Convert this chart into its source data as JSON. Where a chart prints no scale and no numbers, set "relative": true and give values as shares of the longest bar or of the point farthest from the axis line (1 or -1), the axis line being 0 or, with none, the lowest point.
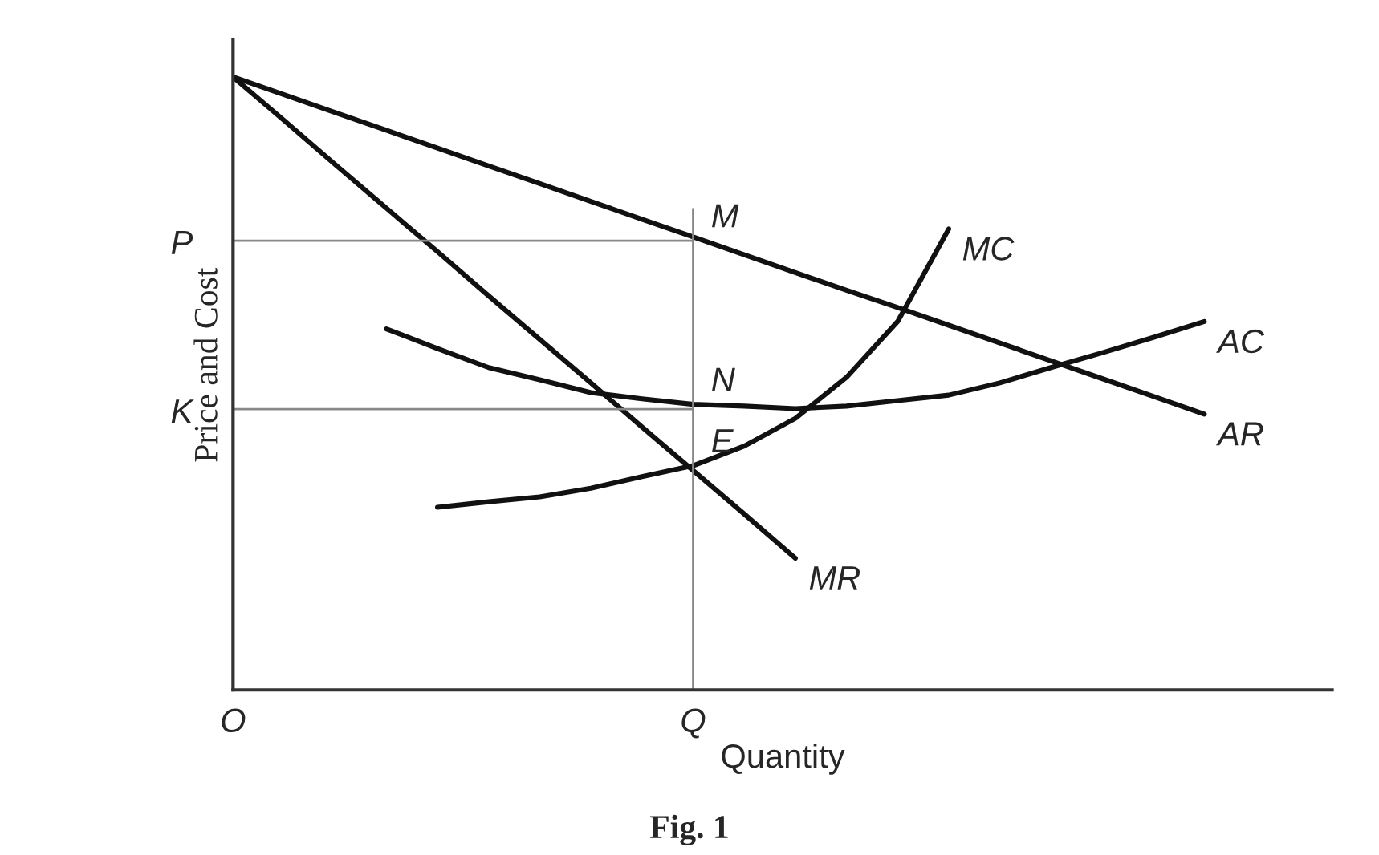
{
  "chart_data": {
    "type": "line",
    "relative": true,
    "xlabel": "Quantity",
    "ylabel": "Price and Cost",
    "categories": [
      "O",
      null,
      null,
      null,
      null,
      null,
      null,
      null,
      null,
      "Q",
      null,
      null,
      null,
      null,
      null,
      null,
      null,
      null,
      null,
      null,
      null,
      null
    ],
    "grid": false,
    "legend": false,
    "marker": "none",
    "line_style": "solid",
    "series": [
      {
        "name": "AR",
        "color": "#111111",
        "values": [
          1.0,
          0.971,
          0.942,
          0.913,
          0.884,
          0.855,
          0.826,
          0.797,
          0.768,
          0.739,
          0.71,
          0.681,
          0.652,
          0.624,
          0.595,
          0.566,
          0.537,
          0.508,
          0.479,
          0.45,
          null,
          null
        ]
      },
      {
        "name": "MR",
        "color": "#111111",
        "values": [
          1.0,
          0.929,
          0.857,
          0.786,
          0.715,
          0.643,
          0.572,
          0.501,
          0.429,
          0.358,
          0.287,
          0.215,
          null,
          null,
          null,
          null,
          null,
          null,
          null,
          null,
          null,
          null
        ]
      },
      {
        "name": "MC",
        "color": "#111111",
        "values": [
          null,
          null,
          null,
          null,
          0.298,
          0.307,
          0.315,
          0.329,
          0.348,
          0.366,
          0.398,
          0.443,
          0.51,
          0.601,
          0.752,
          null,
          null,
          null,
          null,
          null,
          null,
          null
        ]
      },
      {
        "name": "AC",
        "color": "#111111",
        "values": [
          null,
          null,
          null,
          0.589,
          0.557,
          0.526,
          0.506,
          0.485,
          0.475,
          0.466,
          0.463,
          0.459,
          0.463,
          0.472,
          0.481,
          0.501,
          0.526,
          0.55,
          0.575,
          0.601,
          null,
          null
        ]
      },
      {
        "color": "#888888",
        "values": [
          0.733,
          0.733,
          0.733,
          0.733,
          0.733,
          0.733,
          0.733,
          0.733,
          0.733,
          0.733,
          null,
          null,
          null,
          null,
          null,
          null,
          null,
          null,
          null,
          null,
          null,
          null
        ]
      },
      {
        "color": "#888888",
        "values": [
          0.458,
          0.458,
          0.458,
          0.458,
          0.458,
          0.458,
          0.458,
          0.458,
          0.458,
          0.458,
          null,
          null,
          null,
          null,
          null,
          null,
          null,
          null,
          null,
          null,
          null,
          null
        ]
      }
    ],
    "ref_lines": [
      {
        "axis": "x",
        "value": "Q",
        "color": "#888888"
      }
    ],
    "annotations": [
      {
        "text": "P",
        "x": "O",
        "y": 0.733
      },
      {
        "text": "K",
        "x": "O",
        "y": 0.458
      },
      {
        "text": "M",
        "x": "Q",
        "y": 0.733
      },
      {
        "text": "N",
        "x": "Q",
        "y": 0.466
      },
      {
        "text": "E",
        "x": "Q",
        "y": 0.366
      },
      "Fig. 1"
    ]
  }
}
